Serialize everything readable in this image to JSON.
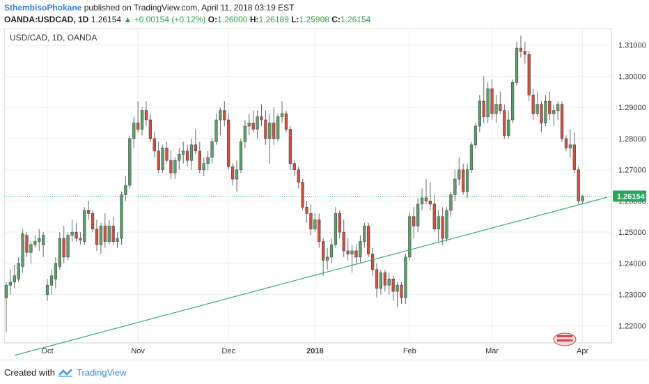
{
  "header": {
    "author": "SthembisoPhokane",
    "published_text": "published on TradingView.com, April 11, 2018 03:19 EST",
    "symbol_line": "OANDA:USDCAD, 1D",
    "last": "1.26154",
    "change": "▲ +0.00154 (+0.12%)",
    "o_label": "O:",
    "o_value": "1.26000",
    "h_label": "H:",
    "h_value": "1.26189",
    "l_label": "L:",
    "l_value": "1.25908",
    "c_label": "C:",
    "c_value": "1.26154"
  },
  "footer": {
    "created_with": "Created with",
    "brand": "TradingView"
  },
  "colors": {
    "up": "#5aa06a",
    "down": "#d34f42",
    "trendline": "#3aa880",
    "price_line": "#26a65b",
    "price_tag": "#26a65b",
    "grid": "#eeeeee"
  },
  "chart_data": {
    "type": "candlestick",
    "title": "USD/CAD, 1D, OANDA",
    "ylim": [
      1.2145,
      1.3155
    ],
    "y_ticks": [
      "1.31000",
      "1.30000",
      "1.29000",
      "1.28000",
      "1.27000",
      "1.26000",
      "1.25000",
      "1.24000",
      "1.23000",
      "1.22000"
    ],
    "x_ticks": [
      {
        "label": "Oct",
        "day": 0
      },
      {
        "label": "Nov",
        "day": 22
      },
      {
        "label": "Dec",
        "day": 44
      },
      {
        "label": "2018",
        "day": 65
      },
      {
        "label": "Feb",
        "day": 88
      },
      {
        "label": "Mar",
        "day": 108
      },
      {
        "label": "Apr",
        "day": 130
      }
    ],
    "last_price": 1.26154,
    "last_price_label": "1.26154",
    "trendline": {
      "start": {
        "day": -8,
        "price": 1.2105
      },
      "end": {
        "day": 136,
        "price": 1.2612
      }
    },
    "candles": [
      {
        "day": -10,
        "o": 1.229,
        "h": 1.234,
        "l": 1.218,
        "c": 1.233
      },
      {
        "day": -9,
        "o": 1.233,
        "h": 1.238,
        "l": 1.23,
        "c": 1.234
      },
      {
        "day": -8,
        "o": 1.234,
        "h": 1.2395,
        "l": 1.232,
        "c": 1.236
      },
      {
        "day": -7,
        "o": 1.235,
        "h": 1.242,
        "l": 1.234,
        "c": 1.24
      },
      {
        "day": -6,
        "o": 1.239,
        "h": 1.251,
        "l": 1.237,
        "c": 1.2495
      },
      {
        "day": -5,
        "o": 1.249,
        "h": 1.25,
        "l": 1.242,
        "c": 1.2435
      },
      {
        "day": -4,
        "o": 1.2435,
        "h": 1.247,
        "l": 1.24,
        "c": 1.246
      },
      {
        "day": -3,
        "o": 1.246,
        "h": 1.249,
        "l": 1.245,
        "c": 1.247
      },
      {
        "day": -2,
        "o": 1.247,
        "h": 1.251,
        "l": 1.244,
        "c": 1.248
      },
      {
        "day": -1,
        "o": 1.246,
        "h": 1.25,
        "l": 1.242,
        "c": 1.249
      },
      {
        "day": 0,
        "o": 1.23,
        "h": 1.235,
        "l": 1.228,
        "c": 1.233
      },
      {
        "day": 1,
        "o": 1.233,
        "h": 1.238,
        "l": 1.23,
        "c": 1.236
      },
      {
        "day": 2,
        "o": 1.235,
        "h": 1.242,
        "l": 1.232,
        "c": 1.24
      },
      {
        "day": 3,
        "o": 1.239,
        "h": 1.25,
        "l": 1.238,
        "c": 1.248
      },
      {
        "day": 4,
        "o": 1.248,
        "h": 1.252,
        "l": 1.24,
        "c": 1.242
      },
      {
        "day": 5,
        "o": 1.242,
        "h": 1.25,
        "l": 1.241,
        "c": 1.249
      },
      {
        "day": 6,
        "o": 1.249,
        "h": 1.254,
        "l": 1.247,
        "c": 1.25
      },
      {
        "day": 7,
        "o": 1.25,
        "h": 1.253,
        "l": 1.247,
        "c": 1.248
      },
      {
        "day": 8,
        "o": 1.248,
        "h": 1.25,
        "l": 1.246,
        "c": 1.2475
      },
      {
        "day": 9,
        "o": 1.247,
        "h": 1.258,
        "l": 1.246,
        "c": 1.257
      },
      {
        "day": 10,
        "o": 1.257,
        "h": 1.26,
        "l": 1.254,
        "c": 1.256
      },
      {
        "day": 11,
        "o": 1.256,
        "h": 1.257,
        "l": 1.25,
        "c": 1.251
      },
      {
        "day": 12,
        "o": 1.251,
        "h": 1.254,
        "l": 1.244,
        "c": 1.246
      },
      {
        "day": 13,
        "o": 1.246,
        "h": 1.253,
        "l": 1.243,
        "c": 1.252
      },
      {
        "day": 14,
        "o": 1.252,
        "h": 1.256,
        "l": 1.245,
        "c": 1.247
      },
      {
        "day": 15,
        "o": 1.247,
        "h": 1.254,
        "l": 1.246,
        "c": 1.252
      },
      {
        "day": 16,
        "o": 1.252,
        "h": 1.255,
        "l": 1.246,
        "c": 1.247
      },
      {
        "day": 17,
        "o": 1.247,
        "h": 1.25,
        "l": 1.245,
        "c": 1.248
      },
      {
        "day": 18,
        "o": 1.248,
        "h": 1.263,
        "l": 1.246,
        "c": 1.262
      },
      {
        "day": 19,
        "o": 1.262,
        "h": 1.268,
        "l": 1.26,
        "c": 1.265
      },
      {
        "day": 20,
        "o": 1.265,
        "h": 1.281,
        "l": 1.264,
        "c": 1.28
      },
      {
        "day": 21,
        "o": 1.28,
        "h": 1.287,
        "l": 1.277,
        "c": 1.285
      },
      {
        "day": 22,
        "o": 1.285,
        "h": 1.292,
        "l": 1.282,
        "c": 1.283
      },
      {
        "day": 23,
        "o": 1.283,
        "h": 1.29,
        "l": 1.281,
        "c": 1.289
      },
      {
        "day": 24,
        "o": 1.289,
        "h": 1.292,
        "l": 1.284,
        "c": 1.286
      },
      {
        "day": 25,
        "o": 1.286,
        "h": 1.288,
        "l": 1.279,
        "c": 1.28
      },
      {
        "day": 26,
        "o": 1.28,
        "h": 1.282,
        "l": 1.274,
        "c": 1.276
      },
      {
        "day": 27,
        "o": 1.276,
        "h": 1.279,
        "l": 1.269,
        "c": 1.27
      },
      {
        "day": 28,
        "o": 1.27,
        "h": 1.278,
        "l": 1.269,
        "c": 1.277
      },
      {
        "day": 29,
        "o": 1.277,
        "h": 1.279,
        "l": 1.272,
        "c": 1.273
      },
      {
        "day": 30,
        "o": 1.273,
        "h": 1.276,
        "l": 1.267,
        "c": 1.269
      },
      {
        "day": 31,
        "o": 1.269,
        "h": 1.274,
        "l": 1.267,
        "c": 1.273
      },
      {
        "day": 32,
        "o": 1.273,
        "h": 1.277,
        "l": 1.27,
        "c": 1.275
      },
      {
        "day": 33,
        "o": 1.275,
        "h": 1.279,
        "l": 1.272,
        "c": 1.276
      },
      {
        "day": 34,
        "o": 1.276,
        "h": 1.278,
        "l": 1.271,
        "c": 1.273
      },
      {
        "day": 35,
        "o": 1.273,
        "h": 1.28,
        "l": 1.27,
        "c": 1.278
      },
      {
        "day": 36,
        "o": 1.278,
        "h": 1.283,
        "l": 1.275,
        "c": 1.276
      },
      {
        "day": 37,
        "o": 1.276,
        "h": 1.279,
        "l": 1.269,
        "c": 1.27
      },
      {
        "day": 38,
        "o": 1.27,
        "h": 1.274,
        "l": 1.268,
        "c": 1.272
      },
      {
        "day": 39,
        "o": 1.272,
        "h": 1.276,
        "l": 1.27,
        "c": 1.274
      },
      {
        "day": 40,
        "o": 1.274,
        "h": 1.28,
        "l": 1.272,
        "c": 1.279
      },
      {
        "day": 41,
        "o": 1.279,
        "h": 1.288,
        "l": 1.278,
        "c": 1.286
      },
      {
        "day": 42,
        "o": 1.286,
        "h": 1.29,
        "l": 1.281,
        "c": 1.289
      },
      {
        "day": 43,
        "o": 1.289,
        "h": 1.292,
        "l": 1.284,
        "c": 1.286
      },
      {
        "day": 44,
        "o": 1.286,
        "h": 1.288,
        "l": 1.27,
        "c": 1.271
      },
      {
        "day": 45,
        "o": 1.271,
        "h": 1.272,
        "l": 1.265,
        "c": 1.267
      },
      {
        "day": 46,
        "o": 1.267,
        "h": 1.273,
        "l": 1.263,
        "c": 1.27
      },
      {
        "day": 47,
        "o": 1.27,
        "h": 1.28,
        "l": 1.269,
        "c": 1.279
      },
      {
        "day": 48,
        "o": 1.279,
        "h": 1.286,
        "l": 1.277,
        "c": 1.284
      },
      {
        "day": 49,
        "o": 1.284,
        "h": 1.288,
        "l": 1.281,
        "c": 1.285
      },
      {
        "day": 50,
        "o": 1.285,
        "h": 1.289,
        "l": 1.282,
        "c": 1.283
      },
      {
        "day": 51,
        "o": 1.283,
        "h": 1.289,
        "l": 1.28,
        "c": 1.287
      },
      {
        "day": 52,
        "o": 1.287,
        "h": 1.291,
        "l": 1.284,
        "c": 1.286
      },
      {
        "day": 53,
        "o": 1.286,
        "h": 1.289,
        "l": 1.278,
        "c": 1.28
      },
      {
        "day": 54,
        "o": 1.28,
        "h": 1.288,
        "l": 1.272,
        "c": 1.285
      },
      {
        "day": 55,
        "o": 1.285,
        "h": 1.29,
        "l": 1.278,
        "c": 1.28
      },
      {
        "day": 56,
        "o": 1.28,
        "h": 1.288,
        "l": 1.279,
        "c": 1.287
      },
      {
        "day": 57,
        "o": 1.287,
        "h": 1.292,
        "l": 1.285,
        "c": 1.288
      },
      {
        "day": 58,
        "o": 1.288,
        "h": 1.289,
        "l": 1.282,
        "c": 1.283
      },
      {
        "day": 59,
        "o": 1.283,
        "h": 1.284,
        "l": 1.27,
        "c": 1.272
      },
      {
        "day": 60,
        "o": 1.272,
        "h": 1.273,
        "l": 1.268,
        "c": 1.27
      },
      {
        "day": 61,
        "o": 1.27,
        "h": 1.271,
        "l": 1.264,
        "c": 1.266
      },
      {
        "day": 62,
        "o": 1.266,
        "h": 1.267,
        "l": 1.257,
        "c": 1.258
      },
      {
        "day": 63,
        "o": 1.258,
        "h": 1.26,
        "l": 1.253,
        "c": 1.256
      },
      {
        "day": 64,
        "o": 1.256,
        "h": 1.259,
        "l": 1.249,
        "c": 1.251
      },
      {
        "day": 65,
        "o": 1.251,
        "h": 1.256,
        "l": 1.25,
        "c": 1.254
      },
      {
        "day": 66,
        "o": 1.254,
        "h": 1.256,
        "l": 1.245,
        "c": 1.247
      },
      {
        "day": 67,
        "o": 1.247,
        "h": 1.248,
        "l": 1.236,
        "c": 1.241
      },
      {
        "day": 68,
        "o": 1.241,
        "h": 1.245,
        "l": 1.238,
        "c": 1.242
      },
      {
        "day": 69,
        "o": 1.242,
        "h": 1.248,
        "l": 1.24,
        "c": 1.246
      },
      {
        "day": 70,
        "o": 1.246,
        "h": 1.258,
        "l": 1.245,
        "c": 1.256
      },
      {
        "day": 71,
        "o": 1.256,
        "h": 1.257,
        "l": 1.248,
        "c": 1.25
      },
      {
        "day": 72,
        "o": 1.25,
        "h": 1.254,
        "l": 1.242,
        "c": 1.244
      },
      {
        "day": 73,
        "o": 1.244,
        "h": 1.248,
        "l": 1.241,
        "c": 1.243
      },
      {
        "day": 74,
        "o": 1.243,
        "h": 1.246,
        "l": 1.237,
        "c": 1.244
      },
      {
        "day": 75,
        "o": 1.244,
        "h": 1.246,
        "l": 1.24,
        "c": 1.242
      },
      {
        "day": 76,
        "o": 1.242,
        "h": 1.249,
        "l": 1.24,
        "c": 1.247
      },
      {
        "day": 77,
        "o": 1.247,
        "h": 1.253,
        "l": 1.245,
        "c": 1.252
      },
      {
        "day": 78,
        "o": 1.252,
        "h": 1.253,
        "l": 1.242,
        "c": 1.243
      },
      {
        "day": 79,
        "o": 1.243,
        "h": 1.245,
        "l": 1.236,
        "c": 1.238
      },
      {
        "day": 80,
        "o": 1.238,
        "h": 1.24,
        "l": 1.229,
        "c": 1.232
      },
      {
        "day": 81,
        "o": 1.232,
        "h": 1.238,
        "l": 1.23,
        "c": 1.237
      },
      {
        "day": 82,
        "o": 1.237,
        "h": 1.238,
        "l": 1.231,
        "c": 1.233
      },
      {
        "day": 83,
        "o": 1.233,
        "h": 1.237,
        "l": 1.23,
        "c": 1.235
      },
      {
        "day": 84,
        "o": 1.235,
        "h": 1.236,
        "l": 1.228,
        "c": 1.231
      },
      {
        "day": 85,
        "o": 1.231,
        "h": 1.234,
        "l": 1.226,
        "c": 1.233
      },
      {
        "day": 86,
        "o": 1.233,
        "h": 1.234,
        "l": 1.227,
        "c": 1.229
      },
      {
        "day": 87,
        "o": 1.229,
        "h": 1.243,
        "l": 1.227,
        "c": 1.242
      },
      {
        "day": 88,
        "o": 1.242,
        "h": 1.256,
        "l": 1.241,
        "c": 1.255
      },
      {
        "day": 89,
        "o": 1.255,
        "h": 1.258,
        "l": 1.248,
        "c": 1.252
      },
      {
        "day": 90,
        "o": 1.252,
        "h": 1.261,
        "l": 1.25,
        "c": 1.259
      },
      {
        "day": 91,
        "o": 1.259,
        "h": 1.264,
        "l": 1.257,
        "c": 1.261
      },
      {
        "day": 92,
        "o": 1.261,
        "h": 1.267,
        "l": 1.259,
        "c": 1.26
      },
      {
        "day": 93,
        "o": 1.26,
        "h": 1.266,
        "l": 1.257,
        "c": 1.259
      },
      {
        "day": 94,
        "o": 1.259,
        "h": 1.262,
        "l": 1.25,
        "c": 1.251
      },
      {
        "day": 95,
        "o": 1.251,
        "h": 1.257,
        "l": 1.247,
        "c": 1.255
      },
      {
        "day": 96,
        "o": 1.255,
        "h": 1.258,
        "l": 1.246,
        "c": 1.248
      },
      {
        "day": 97,
        "o": 1.248,
        "h": 1.258,
        "l": 1.247,
        "c": 1.257
      },
      {
        "day": 98,
        "o": 1.257,
        "h": 1.263,
        "l": 1.255,
        "c": 1.262
      },
      {
        "day": 99,
        "o": 1.262,
        "h": 1.27,
        "l": 1.26,
        "c": 1.267
      },
      {
        "day": 100,
        "o": 1.267,
        "h": 1.274,
        "l": 1.265,
        "c": 1.27
      },
      {
        "day": 101,
        "o": 1.27,
        "h": 1.272,
        "l": 1.262,
        "c": 1.263
      },
      {
        "day": 102,
        "o": 1.263,
        "h": 1.272,
        "l": 1.261,
        "c": 1.27
      },
      {
        "day": 103,
        "o": 1.27,
        "h": 1.279,
        "l": 1.269,
        "c": 1.278
      },
      {
        "day": 104,
        "o": 1.278,
        "h": 1.285,
        "l": 1.277,
        "c": 1.284
      },
      {
        "day": 105,
        "o": 1.284,
        "h": 1.294,
        "l": 1.282,
        "c": 1.292
      },
      {
        "day": 106,
        "o": 1.292,
        "h": 1.3,
        "l": 1.285,
        "c": 1.287
      },
      {
        "day": 107,
        "o": 1.287,
        "h": 1.298,
        "l": 1.285,
        "c": 1.296
      },
      {
        "day": 108,
        "o": 1.296,
        "h": 1.299,
        "l": 1.286,
        "c": 1.288
      },
      {
        "day": 109,
        "o": 1.288,
        "h": 1.294,
        "l": 1.285,
        "c": 1.291
      },
      {
        "day": 110,
        "o": 1.291,
        "h": 1.295,
        "l": 1.288,
        "c": 1.289
      },
      {
        "day": 111,
        "o": 1.289,
        "h": 1.291,
        "l": 1.28,
        "c": 1.281
      },
      {
        "day": 112,
        "o": 1.281,
        "h": 1.289,
        "l": 1.28,
        "c": 1.286
      },
      {
        "day": 113,
        "o": 1.286,
        "h": 1.299,
        "l": 1.285,
        "c": 1.298
      },
      {
        "day": 114,
        "o": 1.298,
        "h": 1.311,
        "l": 1.297,
        "c": 1.309
      },
      {
        "day": 115,
        "o": 1.309,
        "h": 1.313,
        "l": 1.306,
        "c": 1.308
      },
      {
        "day": 116,
        "o": 1.308,
        "h": 1.311,
        "l": 1.304,
        "c": 1.307
      },
      {
        "day": 117,
        "o": 1.307,
        "h": 1.308,
        "l": 1.292,
        "c": 1.294
      },
      {
        "day": 118,
        "o": 1.294,
        "h": 1.296,
        "l": 1.286,
        "c": 1.288
      },
      {
        "day": 119,
        "o": 1.288,
        "h": 1.295,
        "l": 1.287,
        "c": 1.291
      },
      {
        "day": 120,
        "o": 1.291,
        "h": 1.292,
        "l": 1.282,
        "c": 1.285
      },
      {
        "day": 121,
        "o": 1.285,
        "h": 1.294,
        "l": 1.284,
        "c": 1.292
      },
      {
        "day": 122,
        "o": 1.292,
        "h": 1.295,
        "l": 1.286,
        "c": 1.288
      },
      {
        "day": 123,
        "o": 1.288,
        "h": 1.291,
        "l": 1.284,
        "c": 1.289
      },
      {
        "day": 124,
        "o": 1.289,
        "h": 1.292,
        "l": 1.286,
        "c": 1.291
      },
      {
        "day": 125,
        "o": 1.291,
        "h": 1.292,
        "l": 1.279,
        "c": 1.28
      },
      {
        "day": 126,
        "o": 1.28,
        "h": 1.281,
        "l": 1.276,
        "c": 1.277
      },
      {
        "day": 127,
        "o": 1.277,
        "h": 1.283,
        "l": 1.274,
        "c": 1.278
      },
      {
        "day": 128,
        "o": 1.278,
        "h": 1.282,
        "l": 1.269,
        "c": 1.27
      },
      {
        "day": 129,
        "o": 1.27,
        "h": 1.271,
        "l": 1.259,
        "c": 1.26
      },
      {
        "day": 130,
        "o": 1.26,
        "h": 1.2619,
        "l": 1.2591,
        "c": 1.2615
      }
    ]
  }
}
